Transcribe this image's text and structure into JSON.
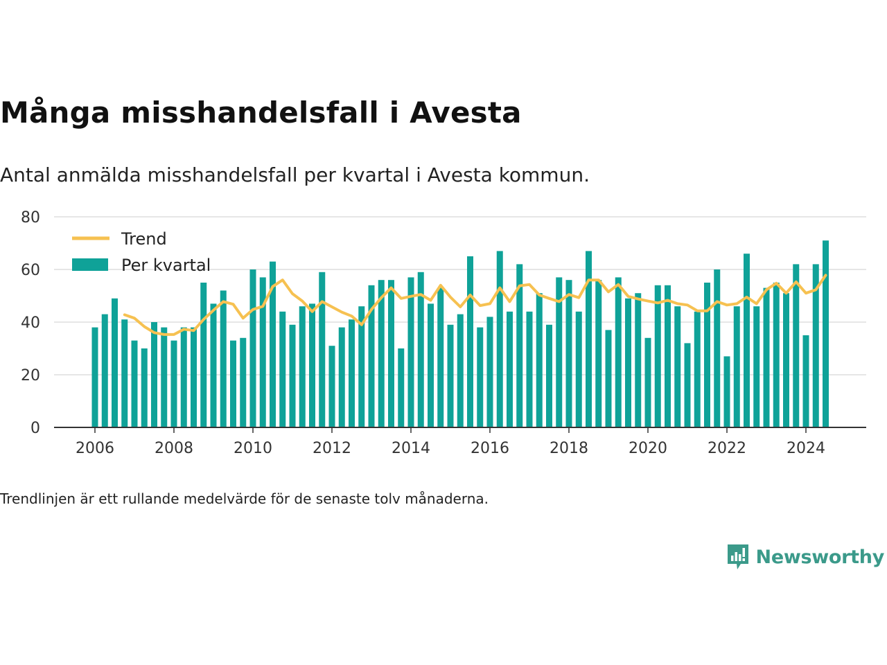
{
  "title": "Många misshandelsfall i Avesta",
  "subtitle": "Antal anmälda misshandelsfall per kvartal i Avesta kommun.",
  "footnote": "Trendlinjen är ett rullande medelvärde för de senaste tolv månaderna.",
  "brand": "Newsworthy",
  "colors": {
    "bars": "#0fa298",
    "trend": "#f6c151",
    "brand": "#3b9a8a"
  },
  "icons": {
    "brand_logo": "newsworthy-logo-icon"
  },
  "chart_data": {
    "type": "bar",
    "x_ticks": [
      "2006",
      "2008",
      "2010",
      "2012",
      "2014",
      "2016",
      "2018",
      "2020",
      "2022",
      "2024"
    ],
    "y_ticks": [
      "0",
      "20",
      "40",
      "60",
      "80"
    ],
    "ylim": [
      0,
      80
    ],
    "grid": true,
    "legend_position": "top-left",
    "x_start": "2006 Q1",
    "series": [
      {
        "name": "Per kvartal",
        "type": "bar",
        "values": [
          38,
          43,
          49,
          41,
          33,
          30,
          40,
          38,
          33,
          38,
          38,
          55,
          47,
          52,
          33,
          34,
          60,
          57,
          63,
          44,
          39,
          46,
          47,
          59,
          31,
          38,
          41,
          46,
          54,
          56,
          56,
          30,
          57,
          59,
          47,
          53,
          39,
          43,
          65,
          38,
          42,
          67,
          44,
          62,
          44,
          51,
          39,
          57,
          56,
          44,
          67,
          56,
          37,
          57,
          49,
          51,
          34,
          54,
          54,
          46,
          32,
          44,
          55,
          60,
          27,
          46,
          66,
          46,
          53,
          55,
          51,
          62,
          35,
          62,
          71
        ]
      },
      {
        "name": "Trend",
        "type": "line",
        "values": [
          null,
          null,
          null,
          42.8,
          41.5,
          38.3,
          36.0,
          35.3,
          35.3,
          37.3,
          36.8,
          41.0,
          44.5,
          47.8,
          46.8,
          41.5,
          44.8,
          46.0,
          53.5,
          56.0,
          50.8,
          48.0,
          44.0,
          47.8,
          45.8,
          43.8,
          42.3,
          39.0,
          44.8,
          49.3,
          53.0,
          49.0,
          49.8,
          50.5,
          48.3,
          54.0,
          49.5,
          45.8,
          50.3,
          46.3,
          47.0,
          53.0,
          47.8,
          53.8,
          54.3,
          50.3,
          49.0,
          47.8,
          50.5,
          49.3,
          56.0,
          56.0,
          51.5,
          54.3,
          49.8,
          48.8,
          48.0,
          47.3,
          48.3,
          47.0,
          46.5,
          44.3,
          44.3,
          47.8,
          46.5,
          47.0,
          49.5,
          47.0,
          52.3,
          54.8,
          51.0,
          55.3,
          51.0,
          52.3,
          57.8
        ]
      }
    ]
  }
}
